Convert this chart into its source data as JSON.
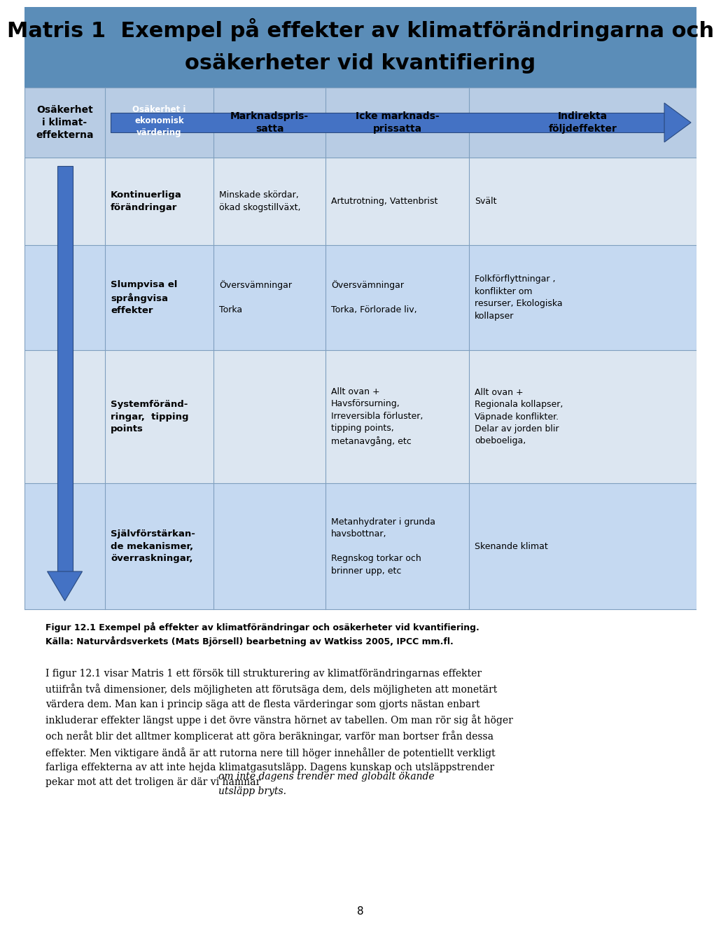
{
  "title_line1": "Matris 1  Exempel på effekter av klimatförändringarna och",
  "title_line2": "osäkerheter vid kvantifiering",
  "title_bg": "#5b8db8",
  "header_bg": "#b8cce4",
  "row_bg_light": "#dce6f1",
  "row_bg_mid": "#c5d9f1",
  "arrow_color": "#4472c4",
  "grid_line_color": "#7f9fbf",
  "arrow_header_text": "Osäkerhet i\nekonomisk\nvärdering",
  "col0_header": "Osäkerhet\ni klimat-\neffekterna",
  "col2_header": "Marknadspris-\nsatta",
  "col3_header": "Icke marknads-\nprissatta",
  "col4_header": "Indirekta\nföljdeffekter",
  "row1_col1": "Kontinuerliga\nförändringar",
  "row1_col2": "Minskade skördar,\nökad skogstillväxt,",
  "row1_col3": "Artutrotning, Vattenbrist",
  "row1_col4": "Svält",
  "row2_col1": "Slumpvisa el\nsprångvisa\neffekter",
  "row2_col2": "Översvämningar\n\nTorka",
  "row2_col3": "Översvämningar\n\nTorka, Förlorade liv,",
  "row2_col4": "Folkförflyttningar ,\nkonflikter om\nresurser, Ekologiska\nkollapser",
  "row3_col1": "Systemföränd-\nringar,  tipping\npoints",
  "row3_col2": "",
  "row3_col3": "Allt ovan +\nHavsförsurning,\nIrreversibla förluster,\ntipping points,\nmetanavgång, etc",
  "row3_col4": "Allt ovan +\nRegionala kollapser,\nVäpnade konflikter.\nDelar av jorden blir\nobeboeliga,",
  "row4_col1": "Självförstärkan-\nde mekanismer,\növerraskningar,",
  "row4_col2": "",
  "row4_col3": "Metanhydrater i grunda\nhavsbottnar,\n\nRegnskog torkar och\nbrinner upp, etc",
  "row4_col4": "Skenande klimat",
  "caption_bold": "Figur 12.1 Exempel på effekter av klimatförändringar och osäkerheter vid kvantifiering.\nKälla: Naturvårdsverkets (Mats Björsell) bearbetning av Watkiss 2005, IPCC mm.fl.",
  "body_normal": "I figur 12.1 visar Matris 1 ett försök till strukturering av klimatförändringarnas effekter\nutiifrån två dimensioner, dels möjligheten att förutsäga dem, dels möjligheten att monetärt\nvärdera dem. Man kan i princip säga att de flesta värderingar som gjorts nästan enbart\ninkluderar effekter längst uppe i det övre vänstra hörnet av tabellen. Om man rör sig åt höger\noch neråt blir det alltmer komplicerat att göra beräkningar, varför man bortser från dessa\neffekter. Men viktigare ändå är att rutorna nere till höger innehåller de potentiellt verkligt\nfarliga effekterna av att inte hejda klimatgasutsläpp. Dagens kunskap och utsläppstrender\npekar mot att det troligen är där vi hamnar ",
  "body_italic": "om inte dagens trender med globalt ökande\nutsläpp bryts.",
  "page_number": "8"
}
